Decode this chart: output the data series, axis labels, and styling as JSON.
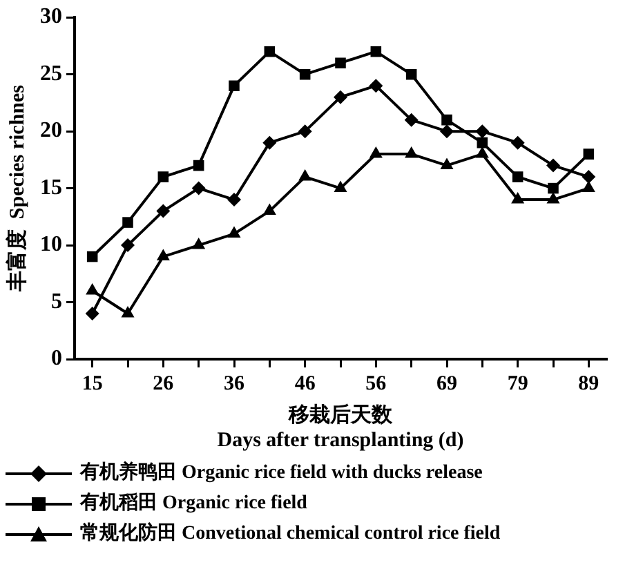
{
  "chart_data": {
    "type": "line",
    "xlabel": "移栽后天数\nDays after transplanting (d)",
    "ylabel": "丰富度  Species richnes",
    "categories": [
      "15",
      null,
      "26",
      null,
      "36",
      null,
      "46",
      null,
      "56",
      null,
      "69",
      null,
      "79",
      null,
      "89"
    ],
    "ylim": [
      0,
      30
    ],
    "yticks": [
      0,
      5,
      10,
      15,
      20,
      25,
      30
    ],
    "grid": false,
    "legend": "bottom",
    "line_style": "solid",
    "series": [
      {
        "name": "有机养鸭田 Organic rice field with ducks release",
        "color": "#000000",
        "marker": "diamond",
        "values": [
          4,
          10,
          13,
          15,
          14,
          19,
          20,
          23,
          24,
          21,
          20,
          20,
          19,
          17,
          16
        ]
      },
      {
        "name": "有机稻田 Organic rice field",
        "color": "#000000",
        "marker": "square",
        "values": [
          9,
          12,
          16,
          17,
          24,
          27,
          25,
          26,
          27,
          25,
          21,
          19,
          16,
          15,
          18
        ]
      },
      {
        "name": "常规化防田 Convetional chemical control rice field",
        "color": "#000000",
        "marker": "triangle",
        "values": [
          6,
          4,
          9,
          10,
          11,
          13,
          16,
          15,
          18,
          18,
          17,
          18,
          14,
          14,
          15
        ]
      }
    ]
  }
}
